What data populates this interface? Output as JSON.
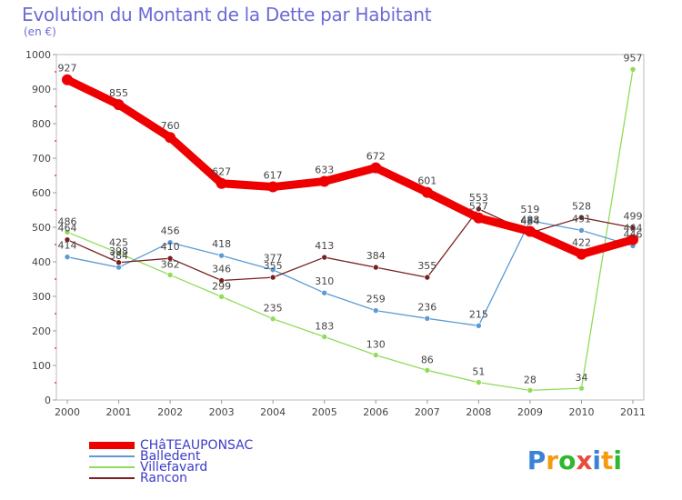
{
  "chart_data": {
    "type": "line",
    "title": "Evolution du Montant de la Dette par Habitant",
    "subtitle": "(en €)",
    "categories": [
      "2000",
      "2001",
      "2002",
      "2003",
      "2004",
      "2005",
      "2006",
      "2007",
      "2008",
      "2009",
      "2010",
      "2011"
    ],
    "ylim": [
      0,
      1000
    ],
    "y_ticks": [
      "0",
      "100",
      "200",
      "300",
      "400",
      "500",
      "600",
      "700",
      "800",
      "900",
      "1000"
    ],
    "grid": false,
    "legend_position": "bottom-left",
    "series": [
      {
        "name": "CHâTEAUPONSAC",
        "color": "#ee0000",
        "values": [
          927,
          855,
          760,
          627,
          617,
          633,
          672,
          601,
          527,
          488,
          422,
          464
        ]
      },
      {
        "name": "Balledent",
        "color": "#5b9bd5",
        "values": [
          414,
          384,
          456,
          418,
          377,
          310,
          259,
          236,
          215,
          519,
          491,
          446
        ]
      },
      {
        "name": "Villefavard",
        "color": "#8fdc5a",
        "values": [
          486,
          425,
          362,
          299,
          235,
          183,
          130,
          86,
          51,
          28,
          34,
          957
        ]
      },
      {
        "name": "Rancon",
        "color": "#7a1f1f",
        "values": [
          464,
          398,
          410,
          346,
          355,
          413,
          384,
          355,
          553,
          484,
          528,
          499
        ]
      }
    ]
  },
  "brand": {
    "letters": [
      "P",
      "r",
      "o",
      "x",
      "i",
      "t",
      "i"
    ],
    "colors": [
      "#3b82d6",
      "#f39c12",
      "#2eb82e",
      "#e74c3c",
      "#3b82d6",
      "#f39c12",
      "#2eb82e"
    ]
  }
}
